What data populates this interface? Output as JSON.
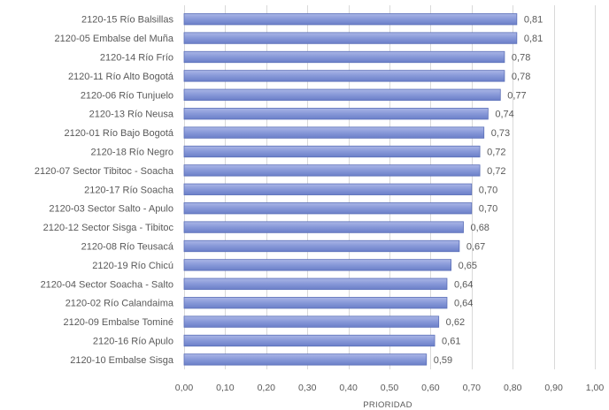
{
  "chart_data": {
    "type": "bar",
    "orientation": "horizontal",
    "categories": [
      "2120-15 Río Balsillas",
      "2120-05 Embalse del Muña",
      "2120-14 Río Frío",
      "2120-11 Río Alto Bogotá",
      "2120-06 Río Tunjuelo",
      "2120-13 Río Neusa",
      "2120-01 Río Bajo Bogotá",
      "2120-18 Río Negro",
      "2120-07 Sector Tibitoc - Soacha",
      "2120-17 Río Soacha",
      "2120-03 Sector Salto - Apulo",
      "2120-12 Sector Sisga - Tibitoc",
      "2120-08 Río Teusacá",
      "2120-19 Río Chicú",
      "2120-04 Sector Soacha - Salto",
      "2120-02 Río Calandaima",
      "2120-09 Embalse Tominé",
      "2120-16 Río Apulo",
      "2120-10 Embalse Sisga"
    ],
    "values": [
      0.81,
      0.81,
      0.78,
      0.78,
      0.77,
      0.74,
      0.73,
      0.72,
      0.72,
      0.7,
      0.7,
      0.68,
      0.67,
      0.65,
      0.64,
      0.64,
      0.62,
      0.61,
      0.59
    ],
    "value_labels": [
      "0,81",
      "0,81",
      "0,78",
      "0,78",
      "0,77",
      "0,74",
      "0,73",
      "0,72",
      "0,72",
      "0,70",
      "0,70",
      "0,68",
      "0,67",
      "0,65",
      "0,64",
      "0,64",
      "0,62",
      "0,61",
      "0,59"
    ],
    "xlim": [
      0,
      1
    ],
    "xticks": [
      0,
      0.1,
      0.2,
      0.3,
      0.4,
      0.5,
      0.6,
      0.7,
      0.8,
      0.9,
      1.0
    ],
    "xtick_labels": [
      "0,00",
      "0,10",
      "0,20",
      "0,30",
      "0,40",
      "0,50",
      "0,60",
      "0,70",
      "0,80",
      "0,90",
      "1,00"
    ],
    "xlabel": "PRIORIDAD",
    "title": "",
    "grid": true,
    "colors": {
      "bar_top": "#aab6e6",
      "bar_mid": "#8798d8",
      "bar_bottom": "#6b7fc8",
      "bar_edge": "#5b6fb8",
      "grid": "#d9d9d9",
      "text": "#595959"
    }
  }
}
